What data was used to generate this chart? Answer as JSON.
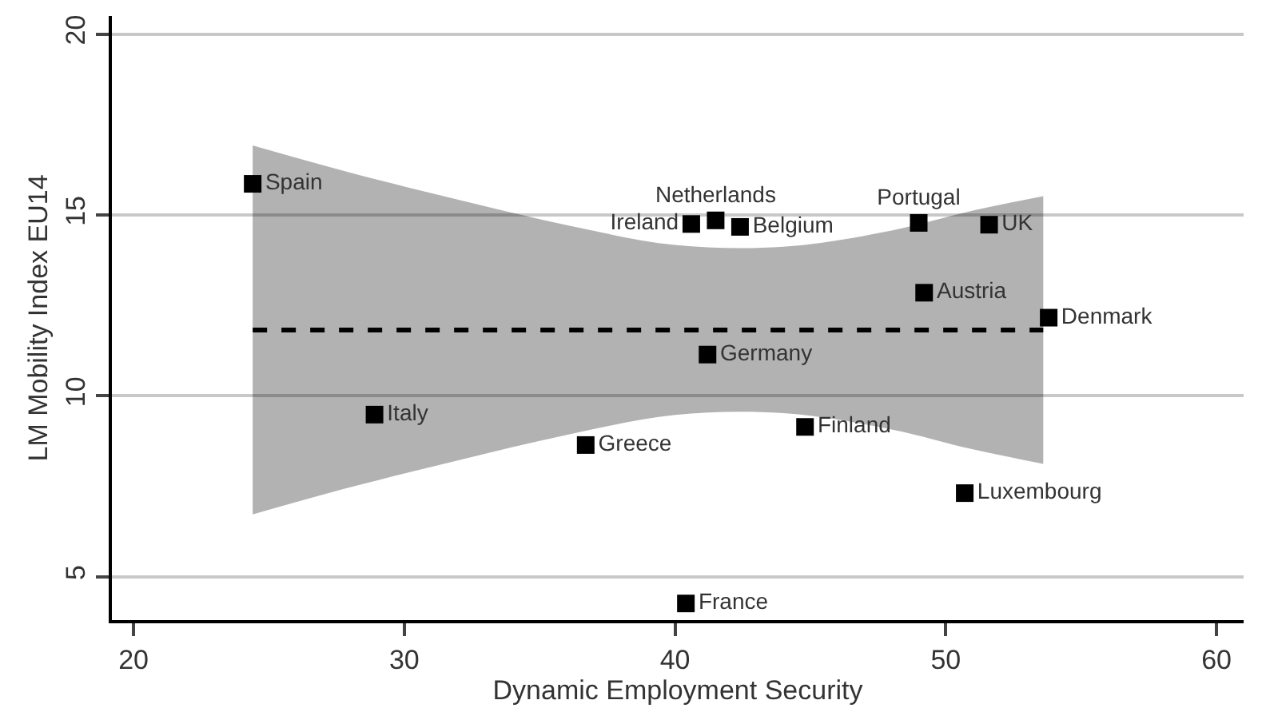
{
  "chart_data": {
    "type": "scatter",
    "xlabel": "Dynamic Employment Security",
    "ylabel": "LM Mobility Index EU14",
    "xlim": [
      19.2,
      61
    ],
    "xticks": [
      20,
      30,
      40,
      50,
      60
    ],
    "ylim": [
      3.8,
      20.5
    ],
    "yticks": [
      5,
      10,
      15,
      20
    ],
    "grid": "y",
    "series": [
      {
        "type": "line",
        "color": "#000000",
        "line_style": "dashed",
        "marker": "none",
        "x": [
          24.4,
          28,
          32,
          36,
          40,
          44,
          48,
          51,
          53.6
        ],
        "values": [
          11.82,
          11.82,
          11.82,
          11.82,
          11.82,
          11.82,
          11.82,
          11.82,
          11.82
        ],
        "lower": [
          6.72,
          7.47,
          8.22,
          8.92,
          9.47,
          9.52,
          9.07,
          8.52,
          8.12
        ],
        "upper": [
          16.92,
          16.17,
          15.42,
          14.72,
          14.17,
          14.12,
          14.57,
          15.12,
          15.52
        ]
      },
      {
        "color": "#000000",
        "marker": "square",
        "x": [
          24.4,
          28.9,
          36.7,
          40.4,
          40.6,
          41.2,
          41.5,
          42.4,
          44.8,
          49.0,
          49.2,
          50.7,
          51.6,
          53.8
        ],
        "values": [
          15.86,
          9.48,
          8.64,
          4.26,
          14.75,
          11.14,
          14.85,
          14.67,
          9.14,
          14.78,
          12.85,
          7.31,
          14.73,
          12.16
        ],
        "value_labels": [
          "Spain",
          "Italy",
          "Greece",
          "France",
          "Ireland",
          "Germany",
          "Netherlands",
          "Belgium",
          "Finland",
          "Portugal",
          "Austria",
          "Luxembourg",
          "UK",
          "Denmark"
        ]
      }
    ]
  }
}
